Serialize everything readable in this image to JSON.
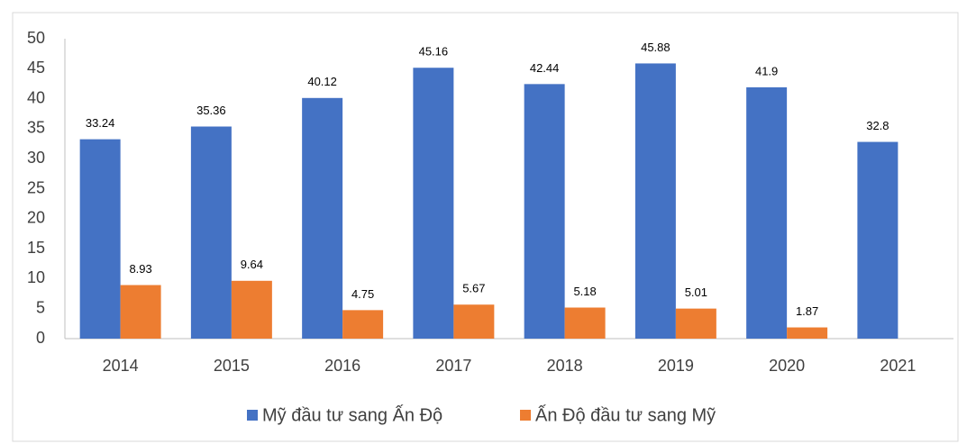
{
  "chart_data": {
    "type": "bar",
    "categories": [
      "2014",
      "2015",
      "2016",
      "2017",
      "2018",
      "2019",
      "2020",
      "2021"
    ],
    "series": [
      {
        "name": "Mỹ đầu tư sang Ấn Độ",
        "color": "#4472c4",
        "values": [
          33.24,
          35.36,
          40.12,
          45.16,
          42.44,
          45.88,
          41.9,
          32.8
        ]
      },
      {
        "name": "Ấn Độ đầu tư sang Mỹ",
        "color": "#ed7d31",
        "values": [
          8.93,
          9.64,
          4.75,
          5.67,
          5.18,
          5.01,
          1.87,
          null
        ]
      }
    ],
    "ylim": [
      0,
      50
    ],
    "yticks": [
      0,
      5,
      10,
      15,
      20,
      25,
      30,
      35,
      40,
      45,
      50
    ],
    "grid": false,
    "legend": "bottom"
  }
}
